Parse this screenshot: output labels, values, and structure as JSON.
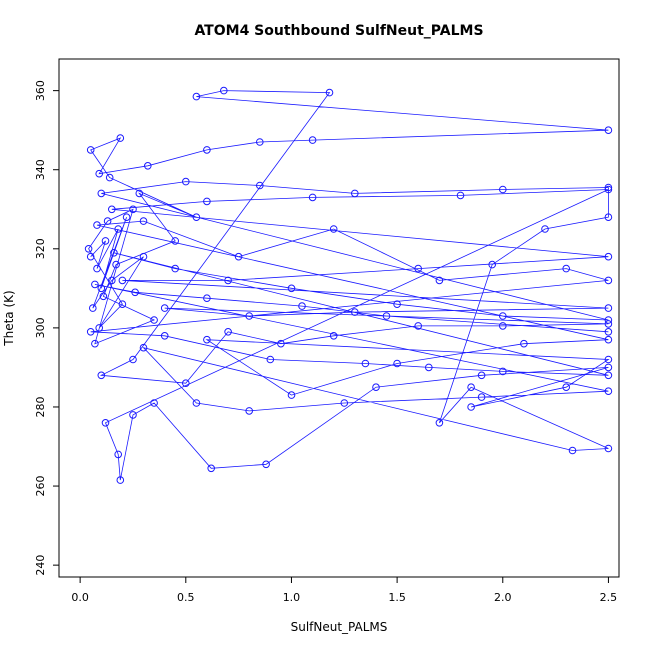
{
  "chart_data": {
    "type": "scatter",
    "title": "ATOM4 Southbound SulfNeut_PALMS",
    "xlabel": "SulfNeut_PALMS",
    "ylabel": "Theta (K)",
    "xlim": [
      -0.1,
      2.55
    ],
    "ylim": [
      237,
      368
    ],
    "x_ticks": [
      0.0,
      0.5,
      1.0,
      1.5,
      2.0,
      2.5
    ],
    "x_tick_labels": [
      "0.0",
      "0.5",
      "1.0",
      "1.5",
      "2.0",
      "2.5"
    ],
    "y_ticks": [
      240,
      260,
      280,
      300,
      320,
      340,
      360
    ],
    "y_tick_labels": [
      "240",
      "260",
      "280",
      "300",
      "320",
      "340",
      "360"
    ],
    "grid": false,
    "legend": "none",
    "marker": "open-circle",
    "connected": true,
    "color": "#1a1aff",
    "series": [
      {
        "points": [
          [
            0.05,
            318
          ],
          [
            0.12,
            322
          ],
          [
            0.08,
            315
          ],
          [
            0.18,
            325
          ],
          [
            0.1,
            310
          ],
          [
            0.22,
            328
          ],
          [
            0.06,
            305
          ],
          [
            0.15,
            312
          ],
          [
            0.3,
            318
          ],
          [
            0.09,
            300
          ],
          [
            0.2,
            306
          ],
          [
            0.04,
            320
          ],
          [
            0.13,
            327
          ],
          [
            0.25,
            330
          ],
          [
            0.07,
            296
          ],
          [
            0.35,
            302
          ],
          [
            0.11,
            308
          ],
          [
            0.17,
            316
          ],
          [
            0.45,
            322
          ],
          [
            0.28,
            334
          ],
          [
            0.55,
            328
          ],
          [
            0.14,
            338
          ],
          [
            0.05,
            345
          ],
          [
            0.19,
            348
          ],
          [
            0.09,
            339
          ],
          [
            0.32,
            341
          ],
          [
            0.6,
            345
          ],
          [
            0.85,
            347
          ],
          [
            1.1,
            347.5
          ],
          [
            2.5,
            350
          ],
          [
            0.55,
            358.5
          ],
          [
            0.68,
            360
          ],
          [
            1.18,
            359.5
          ],
          [
            0.25,
            292
          ],
          [
            0.1,
            288
          ],
          [
            0.5,
            286
          ],
          [
            0.7,
            299
          ],
          [
            0.95,
            296
          ],
          [
            1.2,
            298
          ],
          [
            1.6,
            300.5
          ],
          [
            2.0,
            300.5
          ],
          [
            2.5,
            301
          ],
          [
            0.4,
            305
          ],
          [
            0.8,
            303
          ],
          [
            1.3,
            304
          ],
          [
            2.5,
            305
          ],
          [
            0.2,
            312
          ],
          [
            0.7,
            312
          ],
          [
            1.6,
            315
          ],
          [
            2.5,
            318
          ],
          [
            0.15,
            330
          ],
          [
            0.6,
            332
          ],
          [
            1.1,
            333
          ],
          [
            1.8,
            333.5
          ],
          [
            2.5,
            335
          ],
          [
            0.12,
            276
          ],
          [
            0.18,
            268
          ],
          [
            0.19,
            261.5
          ],
          [
            0.25,
            278
          ],
          [
            0.35,
            281
          ],
          [
            0.62,
            264.5
          ],
          [
            0.88,
            265.5
          ],
          [
            1.4,
            285
          ],
          [
            1.9,
            288
          ],
          [
            2.5,
            290
          ],
          [
            1.85,
            280
          ],
          [
            2.3,
            285
          ],
          [
            2.5,
            292
          ],
          [
            0.6,
            297
          ],
          [
            1.0,
            283
          ],
          [
            1.5,
            291
          ],
          [
            2.1,
            296
          ],
          [
            2.5,
            297
          ],
          [
            0.08,
            326
          ],
          [
            0.3,
            327
          ],
          [
            0.75,
            318
          ],
          [
            1.2,
            325
          ],
          [
            1.7,
            312
          ],
          [
            2.3,
            315
          ],
          [
            2.5,
            312
          ],
          [
            0.05,
            299
          ],
          [
            0.4,
            298
          ],
          [
            0.9,
            292
          ],
          [
            1.35,
            291
          ],
          [
            1.65,
            290
          ],
          [
            2.0,
            289
          ],
          [
            2.5,
            288
          ],
          [
            0.16,
            319
          ],
          [
            0.45,
            315
          ],
          [
            1.0,
            310
          ],
          [
            1.5,
            306
          ],
          [
            2.0,
            303
          ],
          [
            2.5,
            302
          ],
          [
            0.1,
            334
          ],
          [
            0.5,
            337
          ],
          [
            0.85,
            336
          ],
          [
            1.3,
            334
          ],
          [
            2.0,
            335
          ],
          [
            2.5,
            335.5
          ],
          [
            2.5,
            328
          ],
          [
            2.2,
            325
          ],
          [
            1.95,
            316
          ],
          [
            1.7,
            276
          ],
          [
            1.85,
            285
          ],
          [
            2.5,
            269.5
          ],
          [
            2.33,
            269
          ],
          [
            0.3,
            295
          ],
          [
            0.55,
            281
          ],
          [
            0.8,
            279
          ],
          [
            1.25,
            281
          ],
          [
            1.9,
            282.5
          ],
          [
            2.5,
            284
          ],
          [
            0.07,
            311
          ],
          [
            0.26,
            309
          ],
          [
            0.6,
            307.5
          ],
          [
            1.05,
            305.5
          ],
          [
            1.45,
            303
          ],
          [
            2.5,
            299
          ]
        ]
      }
    ]
  }
}
